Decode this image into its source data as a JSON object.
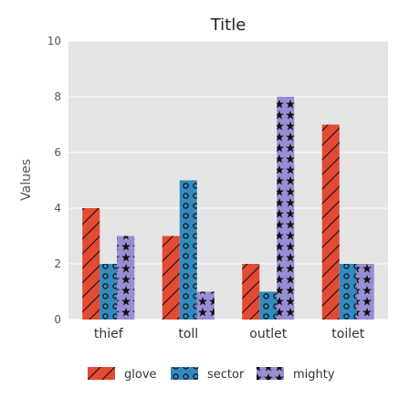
{
  "chart_data": {
    "type": "bar",
    "title": "Title",
    "xlabel": "",
    "ylabel": "Values",
    "ylim": [
      0,
      10
    ],
    "yticks": [
      0,
      2,
      4,
      6,
      8,
      10
    ],
    "grid": true,
    "legend_placement": "bottom",
    "categories": [
      "thief",
      "toll",
      "outlet",
      "toilet"
    ],
    "series": [
      {
        "name": "glove",
        "values": [
          4,
          3,
          2,
          7
        ],
        "color": "#e24a33",
        "pattern": "diagonal-lines"
      },
      {
        "name": "sector",
        "values": [
          2,
          5,
          1,
          2
        ],
        "color": "#348abd",
        "pattern": "circles"
      },
      {
        "name": "mighty",
        "values": [
          3,
          1,
          8,
          2
        ],
        "color": "#988ed5",
        "pattern": "stars"
      }
    ],
    "background": "#e5e5e5"
  }
}
